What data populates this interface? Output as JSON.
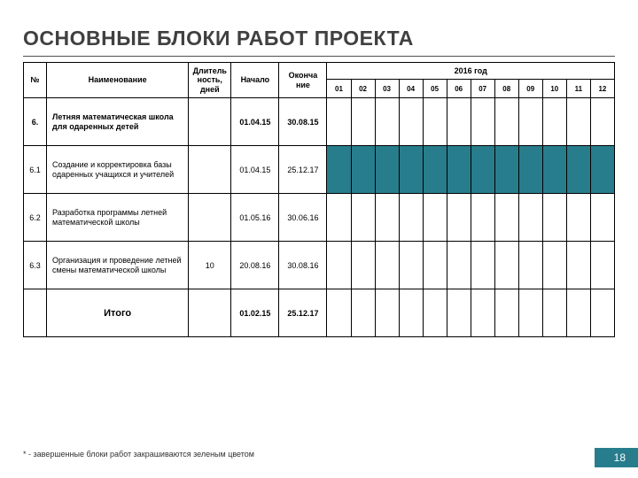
{
  "title": "ОСНОВНЫЕ БЛОКИ РАБОТ ПРОЕКТА",
  "header": {
    "num": "№",
    "name": "Наименование",
    "duration": "Длитель\nность,\nдней",
    "start": "Начало",
    "end": "Оконча\nние",
    "year": "2016 год",
    "months": [
      "01",
      "02",
      "03",
      "04",
      "05",
      "06",
      "07",
      "08",
      "09",
      "10",
      "11",
      "12"
    ]
  },
  "col_widths": {
    "num": 26,
    "name": 160,
    "dur": 48,
    "start": 54,
    "end": 54,
    "month": 27
  },
  "rows": [
    {
      "num": "6.",
      "name": "Летняя математическая школа для одаренных детей",
      "dur": "",
      "start": "01.04.15",
      "end": "30.08.15",
      "bold": true,
      "fill": []
    },
    {
      "num": "6.1",
      "name": "Создание и корректировка базы одаренных учащихся и учителей",
      "dur": "",
      "start": "01.04.15",
      "end": "25.12.17",
      "bold": false,
      "fill": [
        0,
        1,
        2,
        3,
        4,
        5,
        6,
        7,
        8,
        9,
        10,
        11
      ]
    },
    {
      "num": "6.2",
      "name": "Разработка программы летней математической школы",
      "dur": "",
      "start": "01.05.16",
      "end": "30.06.16",
      "bold": false,
      "fill": []
    },
    {
      "num": "6.3",
      "name": "Организация и проведение летней смены математической школы",
      "dur": "10",
      "start": "20.08.16",
      "end": "30.08.16",
      "bold": false,
      "fill": []
    }
  ],
  "total": {
    "label": "Итого",
    "dur": "",
    "start": "01.02.15",
    "end": "25.12.17"
  },
  "footnote": "* - завершенные блоки работ закрашиваются зеленым цветом",
  "page": "18",
  "colors": {
    "accent": "#287d8c",
    "border": "#000000"
  }
}
